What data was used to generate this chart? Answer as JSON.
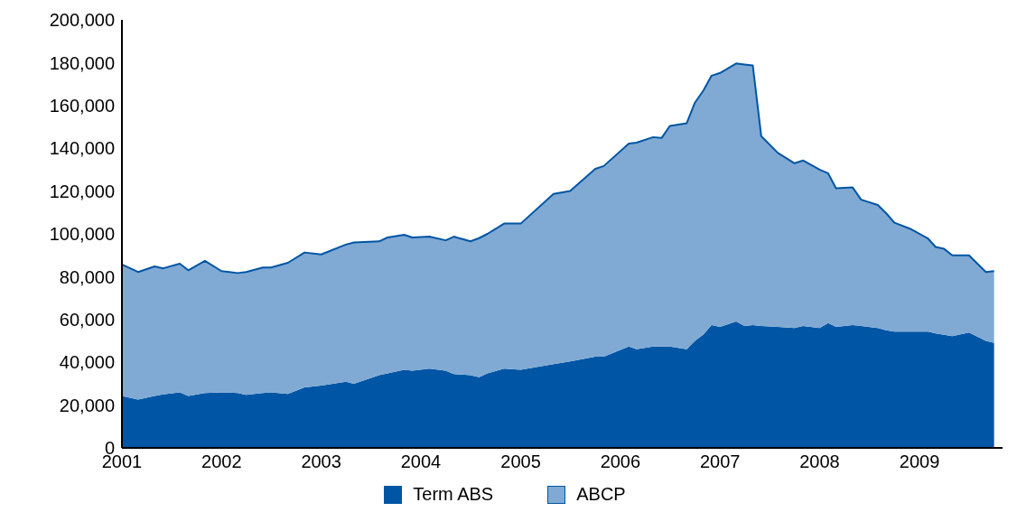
{
  "chart_data": {
    "type": "area",
    "stacked": true,
    "x": [
      "2001-01",
      "2001-03",
      "2001-05",
      "2001-06",
      "2001-08",
      "2001-09",
      "2001-11",
      "2002-01",
      "2002-03",
      "2002-04",
      "2002-06",
      "2002-07",
      "2002-09",
      "2002-11",
      "2003-01",
      "2003-04",
      "2003-05",
      "2003-08",
      "2003-09",
      "2003-11",
      "2003-12",
      "2004-02",
      "2004-04",
      "2004-05",
      "2004-07",
      "2004-08",
      "2004-09",
      "2004-11",
      "2005-01",
      "2005-05",
      "2005-07",
      "2005-10",
      "2005-11",
      "2006-02",
      "2006-03",
      "2006-05",
      "2006-06",
      "2006-07",
      "2006-09",
      "2006-10",
      "2006-11",
      "2006-12",
      "2007-01",
      "2007-03",
      "2007-04",
      "2007-05",
      "2007-06",
      "2007-08",
      "2007-10",
      "2007-11",
      "2008-01",
      "2008-02",
      "2008-03",
      "2008-05",
      "2008-06",
      "2008-08",
      "2008-09",
      "2008-10",
      "2008-12",
      "2009-02",
      "2009-03",
      "2009-04",
      "2009-05",
      "2009-07",
      "2009-09",
      "2009-10"
    ],
    "series": [
      {
        "name": "Term ABS",
        "color": "#0055a5",
        "values": [
          24300,
          22600,
          24300,
          25000,
          26000,
          24300,
          25600,
          26000,
          25600,
          24800,
          25600,
          26000,
          25200,
          28300,
          29100,
          30900,
          30000,
          34000,
          34800,
          36500,
          36100,
          37000,
          36100,
          34500,
          34000,
          33000,
          34800,
          37000,
          36500,
          39100,
          40400,
          42600,
          42600,
          47400,
          46100,
          47400,
          47400,
          47400,
          46100,
          50000,
          53000,
          57400,
          56500,
          59100,
          57000,
          57400,
          57000,
          56500,
          56000,
          57000,
          56000,
          58300,
          56500,
          57400,
          57000,
          56000,
          55000,
          54300,
          54300,
          54300,
          53500,
          52800,
          52200,
          53900,
          50000,
          49100
        ]
      },
      {
        "name": "ABCP",
        "color": "#80aad3",
        "values": [
          61400,
          59600,
          60500,
          58900,
          60100,
          58700,
          61800,
          56600,
          56100,
          57400,
          58700,
          58300,
          61300,
          63000,
          61300,
          64100,
          66000,
          62500,
          63500,
          63100,
          62200,
          61700,
          60900,
          64200,
          62500,
          65000,
          65200,
          67800,
          68300,
          79600,
          79600,
          87800,
          89100,
          94800,
          96500,
          97800,
          97400,
          103000,
          105600,
          111300,
          114000,
          116500,
          118700,
          120500,
          122100,
          121300,
          88700,
          81300,
          77000,
          77300,
          74000,
          70000,
          64800,
          64300,
          59000,
          57500,
          54600,
          50900,
          47900,
          43500,
          40400,
          40200,
          37800,
          36100,
          32200,
          33500
        ]
      }
    ],
    "xlim": [
      "2001-01",
      "2009-11"
    ],
    "xticks": [
      "2001",
      "2002",
      "2003",
      "2004",
      "2005",
      "2006",
      "2007",
      "2008",
      "2009"
    ],
    "ylim": [
      0,
      200000
    ],
    "yticks": [
      0,
      {
        "value": 20000,
        "label": "20,000"
      },
      {
        "value": 40000,
        "label": "40,000"
      },
      {
        "value": 60000,
        "label": "60,000"
      },
      {
        "value": 80000,
        "label": "80,000"
      },
      {
        "value": 100000,
        "label": "100,000"
      },
      {
        "value": 120000,
        "label": "120,000"
      },
      {
        "value": 140000,
        "label": "140,000"
      },
      {
        "value": 160000,
        "label": "160,000"
      },
      {
        "value": 180000,
        "label": "180,000"
      },
      {
        "value": 200000,
        "label": "200,000"
      }
    ],
    "grid": false,
    "legend": "bottom"
  }
}
